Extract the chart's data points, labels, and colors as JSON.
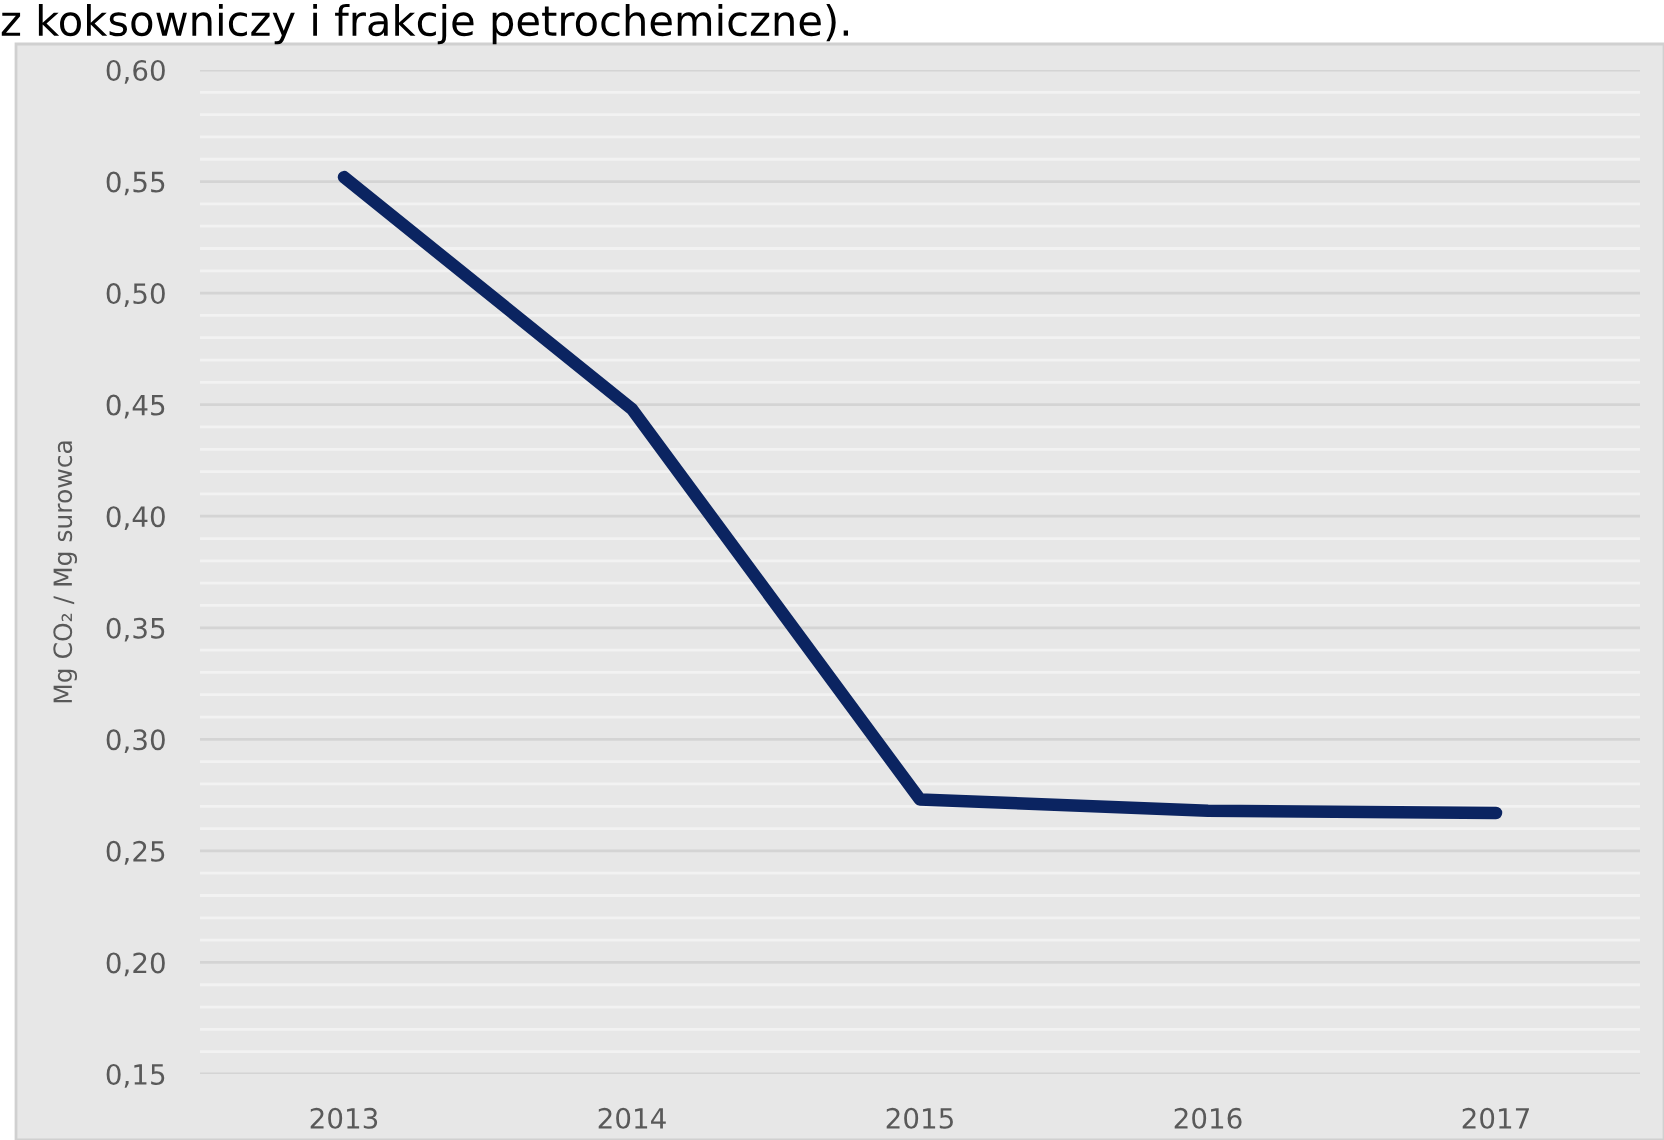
{
  "chart_data": {
    "type": "line",
    "ylabel": "Mg CO₂ / Mg surowca",
    "annotations": [
      "z koksowniczy i frakcje petrochemiczne)."
    ],
    "categories": [
      "2013",
      "2014",
      "2015",
      "2016",
      "2017"
    ],
    "series": [
      {
        "color": "#0b2461",
        "values": [
          0.552,
          0.448,
          0.273,
          0.268,
          0.267
        ]
      }
    ],
    "ylim": [
      0.15,
      0.6
    ],
    "yticks": [
      {
        "value": 0.15,
        "label": "0,15"
      },
      {
        "value": 0.16,
        "label": null
      },
      {
        "value": 0.17,
        "label": null
      },
      {
        "value": 0.18,
        "label": null
      },
      {
        "value": 0.19,
        "label": null
      },
      {
        "value": 0.2,
        "label": "0,20"
      },
      {
        "value": 0.21,
        "label": null
      },
      {
        "value": 0.22,
        "label": null
      },
      {
        "value": 0.23,
        "label": null
      },
      {
        "value": 0.24,
        "label": null
      },
      {
        "value": 0.25,
        "label": "0,25"
      },
      {
        "value": 0.26,
        "label": null
      },
      {
        "value": 0.27,
        "label": null
      },
      {
        "value": 0.28,
        "label": null
      },
      {
        "value": 0.29,
        "label": null
      },
      {
        "value": 0.3,
        "label": "0,30"
      },
      {
        "value": 0.31,
        "label": null
      },
      {
        "value": 0.32,
        "label": null
      },
      {
        "value": 0.33,
        "label": null
      },
      {
        "value": 0.34,
        "label": null
      },
      {
        "value": 0.35,
        "label": "0,35"
      },
      {
        "value": 0.36,
        "label": null
      },
      {
        "value": 0.37,
        "label": null
      },
      {
        "value": 0.38,
        "label": null
      },
      {
        "value": 0.39,
        "label": null
      },
      {
        "value": 0.4,
        "label": "0,40"
      },
      {
        "value": 0.41,
        "label": null
      },
      {
        "value": 0.42,
        "label": null
      },
      {
        "value": 0.43,
        "label": null
      },
      {
        "value": 0.44,
        "label": null
      },
      {
        "value": 0.45,
        "label": "0,45"
      },
      {
        "value": 0.46,
        "label": null
      },
      {
        "value": 0.47,
        "label": null
      },
      {
        "value": 0.48,
        "label": null
      },
      {
        "value": 0.49,
        "label": null
      },
      {
        "value": 0.5,
        "label": "0,50"
      },
      {
        "value": 0.51,
        "label": null
      },
      {
        "value": 0.52,
        "label": null
      },
      {
        "value": 0.53,
        "label": null
      },
      {
        "value": 0.54,
        "label": null
      },
      {
        "value": 0.55,
        "label": "0,55"
      },
      {
        "value": 0.56,
        "label": null
      },
      {
        "value": 0.57,
        "label": null
      },
      {
        "value": 0.58,
        "label": null
      },
      {
        "value": 0.59,
        "label": null
      },
      {
        "value": 0.6,
        "label": "0,60"
      }
    ],
    "grid": "y",
    "line_style": "solid"
  }
}
